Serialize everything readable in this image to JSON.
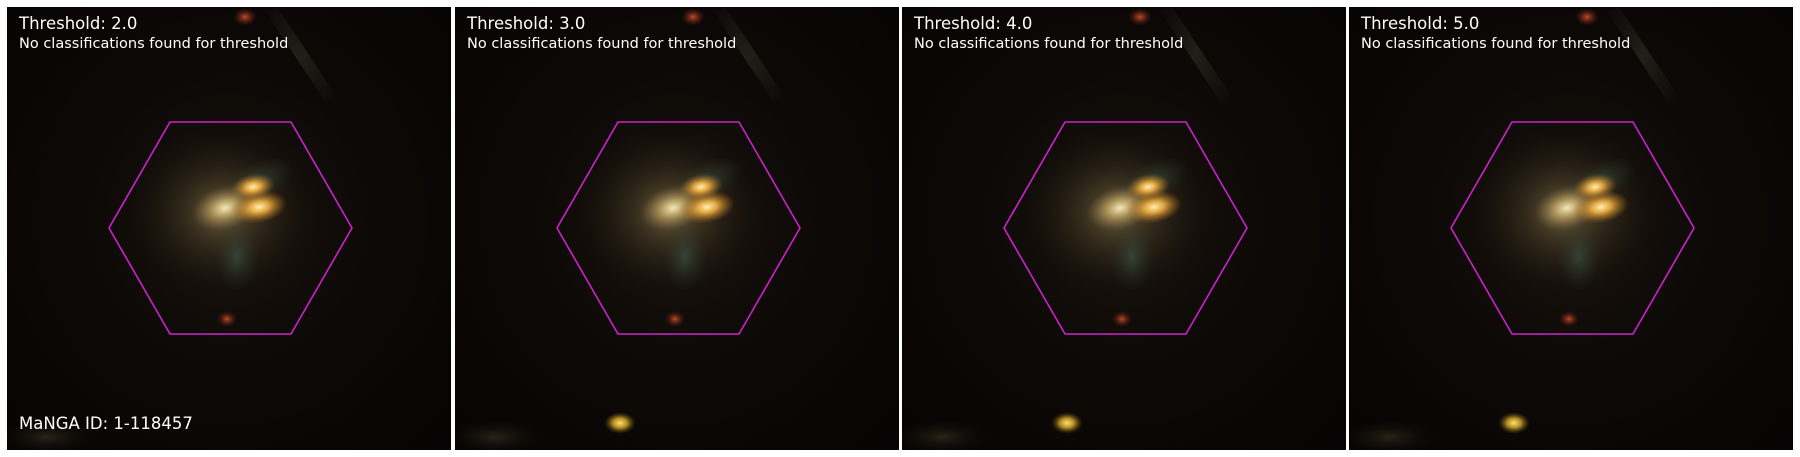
{
  "panels": [
    {
      "title": "Threshold: 2.0",
      "message": "No classifications found for threshold"
    },
    {
      "title": "Threshold: 3.0",
      "message": "No classifications found for threshold"
    },
    {
      "title": "Threshold: 4.0",
      "message": "No classifications found for threshold"
    },
    {
      "title": "Threshold: 5.0",
      "message": "No classifications found for threshold"
    }
  ],
  "manga_id": "MaNGA ID: 1-118457",
  "colors": {
    "hexagon": "#cc22cc",
    "text": "#ffffff",
    "background": "#ffffff",
    "sky": "#060404"
  }
}
